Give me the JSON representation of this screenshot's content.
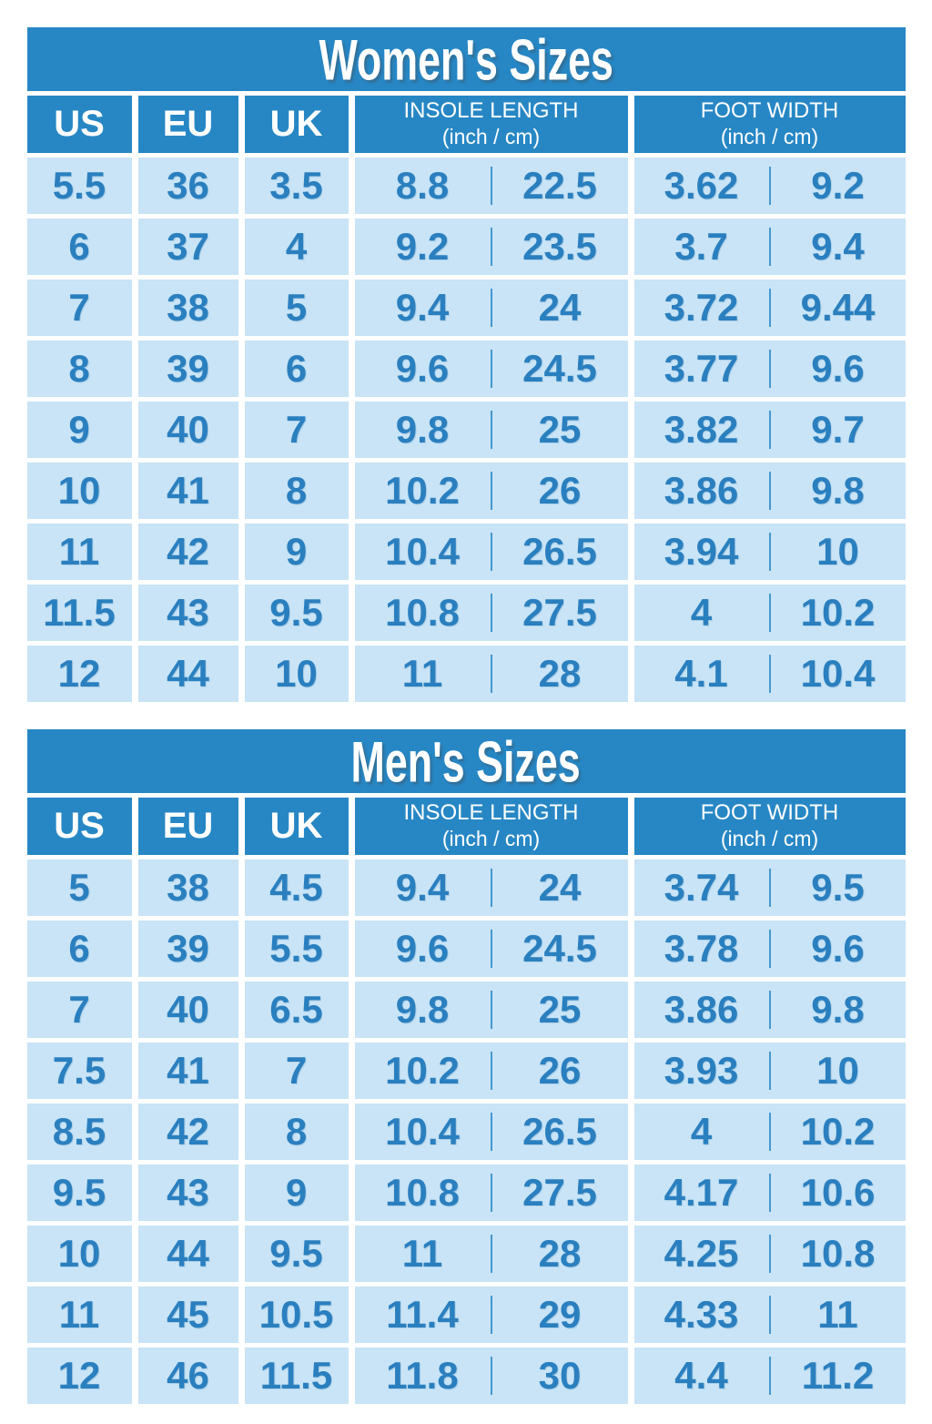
{
  "colors": {
    "header_blue": "#2787C5",
    "row_light_blue": "#C8E4F6",
    "value_text_blue": "#2A7FBF",
    "divider_blue": "#4697CE",
    "title_text": "#FFFFFF",
    "page_background": "#FFFFFF"
  },
  "chart_data": [
    {
      "type": "table",
      "title": "Women's Sizes",
      "columns": [
        "US",
        "EU",
        "UK",
        "INSOLE LENGTH (inch / cm)",
        "FOOT WIDTH (inch / cm)"
      ],
      "headers": {
        "us": "US",
        "eu": "EU",
        "uk": "UK",
        "insole_line1": "INSOLE LENGTH",
        "insole_line2": "(inch / cm)",
        "width_line1": "FOOT WIDTH",
        "width_line2": "(inch / cm)"
      },
      "rows": [
        {
          "us": "5.5",
          "eu": "36",
          "uk": "3.5",
          "insole_inch": "8.8",
          "insole_cm": "22.5",
          "width_inch": "3.62",
          "width_cm": "9.2"
        },
        {
          "us": "6",
          "eu": "37",
          "uk": "4",
          "insole_inch": "9.2",
          "insole_cm": "23.5",
          "width_inch": "3.7",
          "width_cm": "9.4"
        },
        {
          "us": "7",
          "eu": "38",
          "uk": "5",
          "insole_inch": "9.4",
          "insole_cm": "24",
          "width_inch": "3.72",
          "width_cm": "9.44"
        },
        {
          "us": "8",
          "eu": "39",
          "uk": "6",
          "insole_inch": "9.6",
          "insole_cm": "24.5",
          "width_inch": "3.77",
          "width_cm": "9.6"
        },
        {
          "us": "9",
          "eu": "40",
          "uk": "7",
          "insole_inch": "9.8",
          "insole_cm": "25",
          "width_inch": "3.82",
          "width_cm": "9.7"
        },
        {
          "us": "10",
          "eu": "41",
          "uk": "8",
          "insole_inch": "10.2",
          "insole_cm": "26",
          "width_inch": "3.86",
          "width_cm": "9.8"
        },
        {
          "us": "11",
          "eu": "42",
          "uk": "9",
          "insole_inch": "10.4",
          "insole_cm": "26.5",
          "width_inch": "3.94",
          "width_cm": "10"
        },
        {
          "us": "11.5",
          "eu": "43",
          "uk": "9.5",
          "insole_inch": "10.8",
          "insole_cm": "27.5",
          "width_inch": "4",
          "width_cm": "10.2"
        },
        {
          "us": "12",
          "eu": "44",
          "uk": "10",
          "insole_inch": "11",
          "insole_cm": "28",
          "width_inch": "4.1",
          "width_cm": "10.4"
        }
      ]
    },
    {
      "type": "table",
      "title": "Men's Sizes",
      "columns": [
        "US",
        "EU",
        "UK",
        "INSOLE LENGTH (inch / cm)",
        "FOOT WIDTH (inch / cm)"
      ],
      "headers": {
        "us": "US",
        "eu": "EU",
        "uk": "UK",
        "insole_line1": "INSOLE LENGTH",
        "insole_line2": "(inch / cm)",
        "width_line1": "FOOT WIDTH",
        "width_line2": "(inch / cm)"
      },
      "rows": [
        {
          "us": "5",
          "eu": "38",
          "uk": "4.5",
          "insole_inch": "9.4",
          "insole_cm": "24",
          "width_inch": "3.74",
          "width_cm": "9.5"
        },
        {
          "us": "6",
          "eu": "39",
          "uk": "5.5",
          "insole_inch": "9.6",
          "insole_cm": "24.5",
          "width_inch": "3.78",
          "width_cm": "9.6"
        },
        {
          "us": "7",
          "eu": "40",
          "uk": "6.5",
          "insole_inch": "9.8",
          "insole_cm": "25",
          "width_inch": "3.86",
          "width_cm": "9.8"
        },
        {
          "us": "7.5",
          "eu": "41",
          "uk": "7",
          "insole_inch": "10.2",
          "insole_cm": "26",
          "width_inch": "3.93",
          "width_cm": "10"
        },
        {
          "us": "8.5",
          "eu": "42",
          "uk": "8",
          "insole_inch": "10.4",
          "insole_cm": "26.5",
          "width_inch": "4",
          "width_cm": "10.2"
        },
        {
          "us": "9.5",
          "eu": "43",
          "uk": "9",
          "insole_inch": "10.8",
          "insole_cm": "27.5",
          "width_inch": "4.17",
          "width_cm": "10.6"
        },
        {
          "us": "10",
          "eu": "44",
          "uk": "9.5",
          "insole_inch": "11",
          "insole_cm": "28",
          "width_inch": "4.25",
          "width_cm": "10.8"
        },
        {
          "us": "11",
          "eu": "45",
          "uk": "10.5",
          "insole_inch": "11.4",
          "insole_cm": "29",
          "width_inch": "4.33",
          "width_cm": "11"
        },
        {
          "us": "12",
          "eu": "46",
          "uk": "11.5",
          "insole_inch": "11.8",
          "insole_cm": "30",
          "width_inch": "4.4",
          "width_cm": "11.2"
        }
      ]
    }
  ]
}
